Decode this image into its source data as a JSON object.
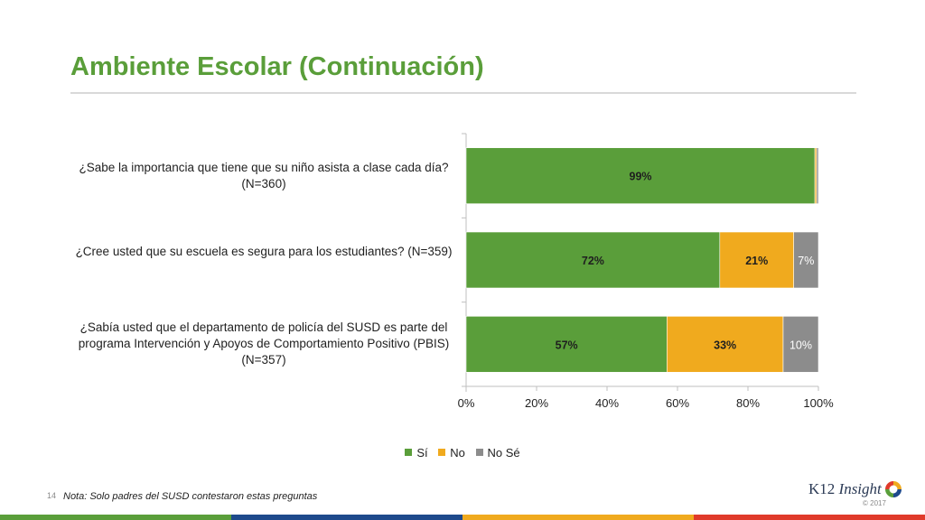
{
  "title": "Ambiente Escolar (Continuación)",
  "page_number": "14",
  "note": "Nota: Solo padres del SUSD contestaron estas preguntas",
  "logo": {
    "brand": "K12",
    "brand_suffix": "Insight",
    "copyright": "© 2017"
  },
  "colors": {
    "si": "#5a9e3a",
    "no": "#f0aa1e",
    "nose": "#8c8c8c",
    "footer": [
      "#5a9e3a",
      "#1e4a8c",
      "#f0aa1e",
      "#e03a2a"
    ]
  },
  "legend": [
    "Sí",
    "No",
    "No Sé"
  ],
  "chart_data": {
    "type": "bar",
    "orientation": "horizontal",
    "stacked": true,
    "categories": [
      "¿Sabe la importancia que tiene que su niño asista a clase cada día? (N=360)",
      "¿Cree usted que su escuela es segura para los estudiantes? (N=359)",
      "¿Sabía usted que el departamento de policía del SUSD es parte del programa Intervención y Apoyos de Comportamiento Positivo (PBIS) (N=357)"
    ],
    "series": [
      {
        "name": "Sí",
        "values": [
          99,
          72,
          57
        ],
        "labels": [
          "99%",
          "72%",
          "57%"
        ]
      },
      {
        "name": "No",
        "values": [
          0.5,
          21,
          33
        ],
        "labels": [
          "",
          "21%",
          "33%"
        ]
      },
      {
        "name": "No Sé",
        "values": [
          0.5,
          7,
          10
        ],
        "labels": [
          "",
          "7%",
          "10%"
        ]
      }
    ],
    "xlim": [
      0,
      100
    ],
    "xticks": [
      "0%",
      "20%",
      "40%",
      "60%",
      "80%",
      "100%"
    ],
    "grid": false,
    "legend_position": "bottom"
  }
}
